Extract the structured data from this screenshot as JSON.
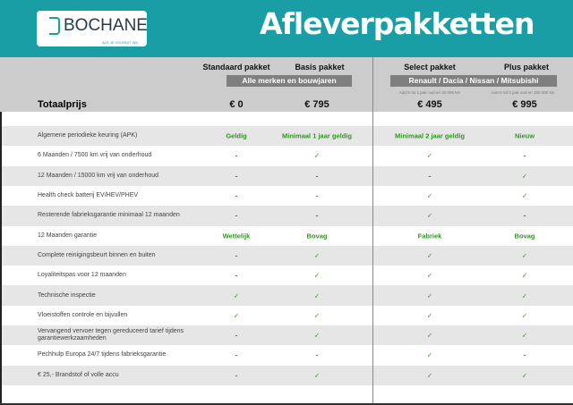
{
  "header": {
    "logo_name": "BOCHANE",
    "logo_slogan": "ALS JE VOORUIT WIL",
    "title": "Afleverpakketten"
  },
  "packages": [
    {
      "name": "Standaard pakket",
      "price": "€ 0"
    },
    {
      "name": "Basis pakket",
      "price": "€ 795"
    },
    {
      "name": "Select pakket",
      "price": "€ 495",
      "note": "Auto's tot 1 jaar oud en 20.000 km"
    },
    {
      "name": "Plus pakket",
      "price": "€ 995",
      "note": "Auto's tot 5 jaar oud en 100.000 km"
    }
  ],
  "groups": [
    "Alle merken en bouwjaren",
    "Renault / Dacia / Nissan / Mitsubishi"
  ],
  "total_label": "Totaalprijs",
  "colors": {
    "header": "#1a9ea6",
    "band": "#cccccc",
    "check": "#2a9a1a"
  },
  "rows": [
    {
      "label": "Algemene periodieke keuring (APK)",
      "values": [
        "Geldig",
        "Minimaal 1 jaar geldig",
        "Minimaal 2 jaar geldig",
        "Nieuw"
      ]
    },
    {
      "label": "6 Maanden / 7500 km vrij van onderhoud",
      "values": [
        "-",
        "✓",
        "✓",
        "-"
      ]
    },
    {
      "label": "12 Maanden / 15000 km vrij van onderhoud",
      "values": [
        "-",
        "-",
        "-",
        "✓"
      ]
    },
    {
      "label": "Health check batterij EV/HEV/PHEV",
      "values": [
        "-",
        "-",
        "✓",
        "✓"
      ]
    },
    {
      "label": "Resterende fabrieksgarantie minimaal 12 maanden",
      "values": [
        "-",
        "-",
        "✓",
        "-"
      ]
    },
    {
      "label": "12 Maanden  garantie",
      "values": [
        "Wettelijk",
        "Bovag",
        "Fabriek",
        "Bovag"
      ]
    },
    {
      "label": "Complete reinigingsbeurt binnen en buiten",
      "values": [
        "-",
        "✓",
        "✓",
        "✓"
      ]
    },
    {
      "label": "Loyaliteitspas voor 12 maanden",
      "values": [
        "-",
        "✓",
        "✓",
        "✓"
      ]
    },
    {
      "label": "Technische inspectie",
      "values": [
        "✓",
        "✓",
        "✓",
        "✓"
      ]
    },
    {
      "label": "Vloeistoffen controle en bijvullen",
      "values": [
        "✓",
        "✓",
        "✓",
        "✓"
      ]
    },
    {
      "label": "Vervangend vervoer tegen gereduceerd tarief tijdens garantiewerkzaamheden",
      "values": [
        "-",
        "✓",
        "✓",
        "✓"
      ]
    },
    {
      "label": "Pechhulp Europa 24/7 tijdens fabrieksgarantie",
      "values": [
        "-",
        "-",
        "✓",
        "-"
      ]
    },
    {
      "label": "€ 25,- Brandstof of  volle accu",
      "values": [
        "-",
        "✓",
        "✓",
        "✓"
      ]
    }
  ]
}
